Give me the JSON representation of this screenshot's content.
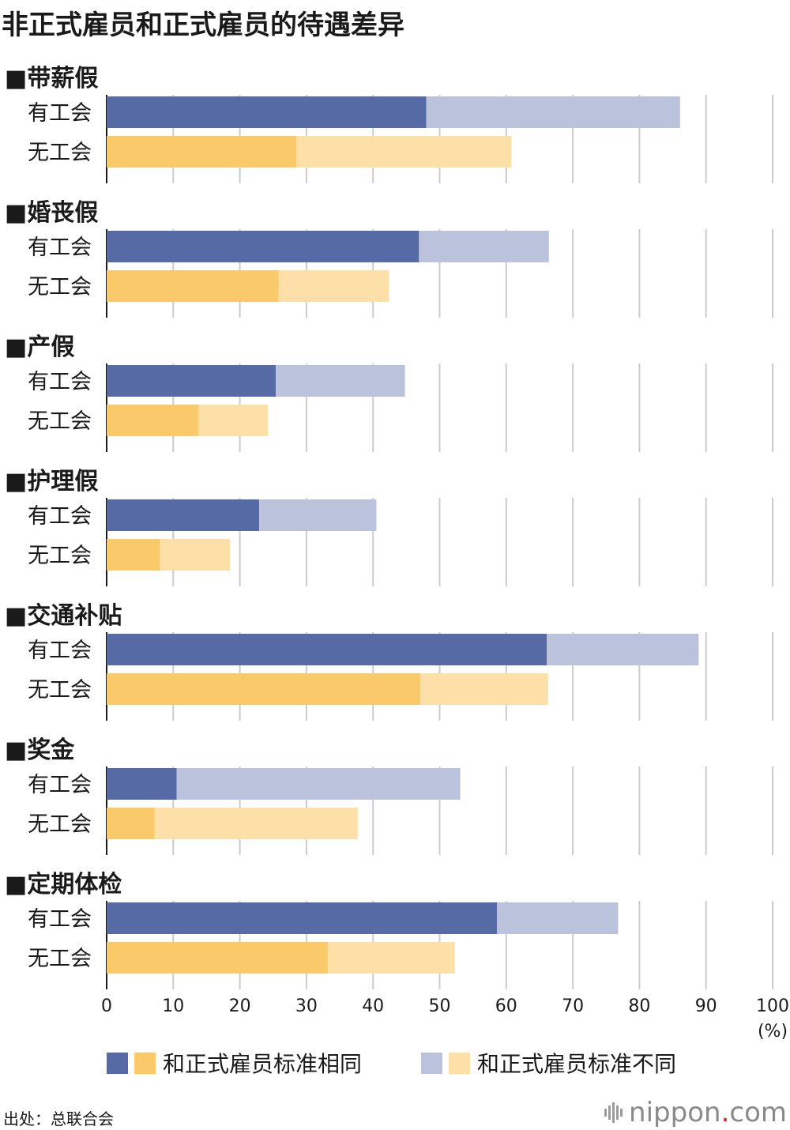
{
  "title": "非正式雇员和正式雇员的待遇差异",
  "source": "出处：总联合会",
  "logo": {
    "pre": "nippon",
    "dot": ".",
    "post": "com"
  },
  "colors": {
    "union_same": "#566aa6",
    "union_diff": "#bbc2dc",
    "nounion_same": "#fac96a",
    "nounion_diff": "#fde0a8",
    "grid": "#cccccc",
    "axis": "#1a1a1a"
  },
  "chart_data": {
    "type": "bar",
    "orientation": "horizontal",
    "stacked": true,
    "xlim": [
      0,
      100
    ],
    "xticks": [
      "0",
      "10",
      "20",
      "30",
      "40",
      "50",
      "60",
      "70",
      "80",
      "90",
      "100"
    ],
    "xunit": "(%)",
    "legend": [
      {
        "label": "和正式雇员标准相同",
        "colors": [
          "union_same",
          "nounion_same"
        ]
      },
      {
        "label": "和正式雇员标准不同",
        "colors": [
          "union_diff",
          "nounion_diff"
        ]
      }
    ],
    "groups": [
      {
        "name": "■带薪假",
        "rows": [
          {
            "label": "有工会",
            "same": 48.0,
            "diff": 38.1
          },
          {
            "label": "无工会",
            "same": 28.5,
            "diff": 32.3
          }
        ]
      },
      {
        "name": "■婚丧假",
        "rows": [
          {
            "label": "有工会",
            "same": 46.9,
            "diff": 19.5
          },
          {
            "label": "无工会",
            "same": 25.8,
            "diff": 16.6
          }
        ]
      },
      {
        "name": "■产假",
        "rows": [
          {
            "label": "有工会",
            "same": 25.4,
            "diff": 19.4
          },
          {
            "label": "无工会",
            "same": 13.8,
            "diff": 10.4
          }
        ]
      },
      {
        "name": "■护理假",
        "rows": [
          {
            "label": "有工会",
            "same": 22.9,
            "diff": 17.6
          },
          {
            "label": "无工会",
            "same": 8.0,
            "diff": 10.5
          }
        ]
      },
      {
        "name": "■交通补贴",
        "rows": [
          {
            "label": "有工会",
            "same": 66.1,
            "diff": 22.8
          },
          {
            "label": "无工会",
            "same": 47.1,
            "diff": 19.2
          }
        ]
      },
      {
        "name": "■奖金",
        "rows": [
          {
            "label": "有工会",
            "same": 10.5,
            "diff": 42.6
          },
          {
            "label": "无工会",
            "same": 7.2,
            "diff": 30.5
          }
        ]
      },
      {
        "name": "■定期体检",
        "rows": [
          {
            "label": "有工会",
            "same": 58.6,
            "diff": 18.2
          },
          {
            "label": "无工会",
            "same": 33.2,
            "diff": 19.1
          }
        ]
      }
    ]
  }
}
